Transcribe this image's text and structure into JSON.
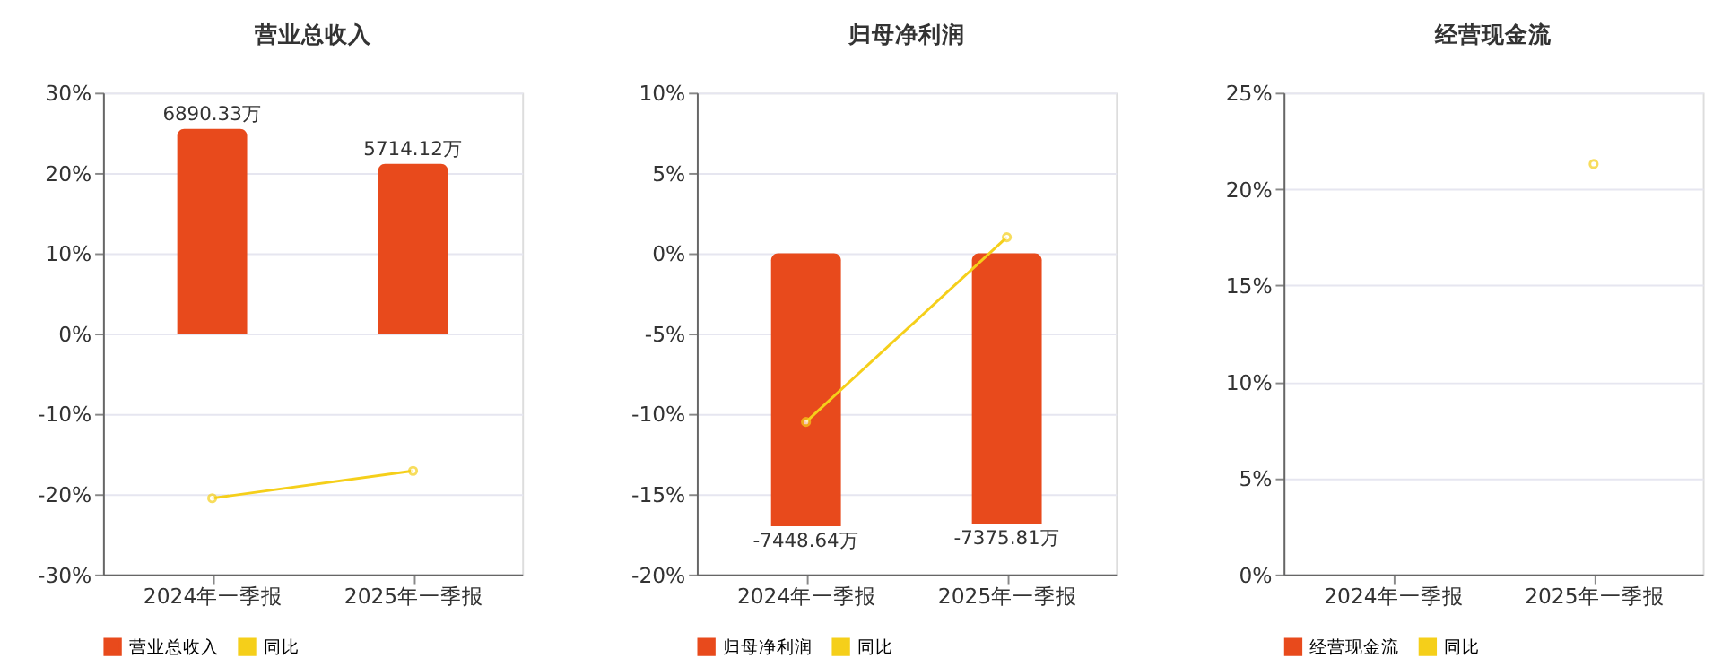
{
  "chart_data": [
    {
      "type": "bar",
      "title": "营业总收入",
      "categories": [
        "2024年一季报",
        "2025年一季报"
      ],
      "ylim": [
        -30,
        30
      ],
      "yticks": [
        {
          "value": -30,
          "label": "-30%"
        },
        {
          "value": -20,
          "label": "-20%"
        },
        {
          "value": -10,
          "label": "-10%"
        },
        {
          "value": 0,
          "label": "0%"
        },
        {
          "value": 10,
          "label": "10%"
        },
        {
          "value": 20,
          "label": "20%"
        },
        {
          "value": 30,
          "label": "30%"
        }
      ],
      "grid": "y",
      "legend": "bottom",
      "marker": "circle",
      "series": [
        {
          "name": "营业总收入",
          "type": "bar",
          "axis": "y2",
          "color": "#e84a1c",
          "values": [
            6890.33,
            5714.12
          ],
          "value_labels": [
            "6890.33万",
            "5714.12万"
          ]
        },
        {
          "name": "同比",
          "type": "line",
          "color": "#f5cf1a",
          "values": [
            -20.5,
            -17.1
          ]
        }
      ]
    },
    {
      "type": "bar",
      "title": "归母净利润",
      "categories": [
        "2024年一季报",
        "2025年一季报"
      ],
      "ylim": [
        -20,
        10
      ],
      "yticks": [
        {
          "value": -20,
          "label": "-20%"
        },
        {
          "value": -15,
          "label": "-15%"
        },
        {
          "value": -10,
          "label": "-10%"
        },
        {
          "value": -5,
          "label": "-5%"
        },
        {
          "value": 0,
          "label": "0%"
        },
        {
          "value": 5,
          "label": "5%"
        },
        {
          "value": 10,
          "label": "10%"
        }
      ],
      "grid": "y",
      "legend": "bottom",
      "marker": "circle",
      "series": [
        {
          "name": "归母净利润",
          "type": "bar",
          "axis": "y2",
          "color": "#e84a1c",
          "values": [
            -7448.64,
            -7375.81
          ],
          "value_labels": [
            "-7448.64万",
            "-7375.81万"
          ]
        },
        {
          "name": "同比",
          "type": "line",
          "color": "#f5cf1a",
          "values": [
            -10.5,
            1.0
          ]
        }
      ]
    },
    {
      "type": "bar",
      "title": "经营现金流",
      "categories": [
        "2024年一季报",
        "2025年一季报"
      ],
      "ylim": [
        0,
        25
      ],
      "yticks": [
        {
          "value": 0,
          "label": "0%"
        },
        {
          "value": 5,
          "label": "5%"
        },
        {
          "value": 10,
          "label": "10%"
        },
        {
          "value": 15,
          "label": "15%"
        },
        {
          "value": 20,
          "label": "20%"
        },
        {
          "value": 25,
          "label": "25%"
        }
      ],
      "grid": "y",
      "legend": "bottom",
      "marker": "circle",
      "series": [
        {
          "name": "经营现金流",
          "type": "bar",
          "axis": "y2",
          "color": "#e84a1c",
          "values": [
            null,
            null
          ]
        },
        {
          "name": "同比",
          "type": "line",
          "color": "#f5cf1a",
          "values": [
            null,
            21.3
          ]
        }
      ]
    }
  ]
}
